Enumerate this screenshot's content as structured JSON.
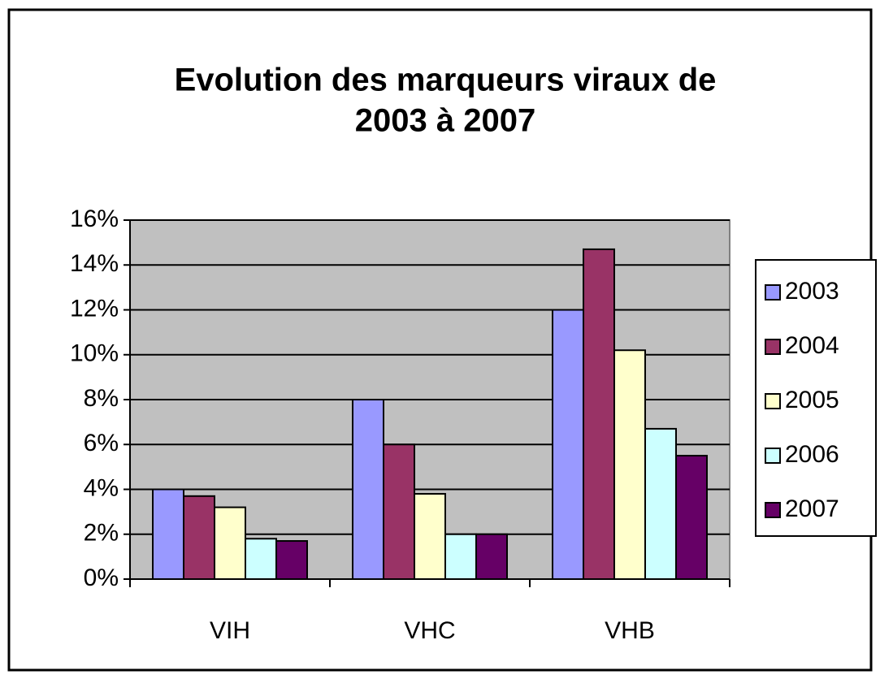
{
  "chart_data": {
    "type": "bar",
    "title": [
      "Evolution des marqueurs viraux de",
      "2003 à 2007"
    ],
    "categories": [
      "VIH",
      "VHC",
      "VHB"
    ],
    "series": [
      {
        "name": "2003",
        "color": "#9999ff",
        "values": [
          4,
          8,
          12
        ]
      },
      {
        "name": "2004",
        "color": "#993366",
        "values": [
          3.7,
          6,
          14.7
        ]
      },
      {
        "name": "2005",
        "color": "#ffffcc",
        "values": [
          3.2,
          3.8,
          10.2
        ]
      },
      {
        "name": "2006",
        "color": "#ccffff",
        "values": [
          1.8,
          2,
          6.7
        ]
      },
      {
        "name": "2007",
        "color": "#660066",
        "values": [
          1.7,
          2,
          5.5
        ]
      }
    ],
    "ylim": [
      0,
      16
    ],
    "yticks": [
      {
        "value": 0,
        "label": "0%"
      },
      {
        "value": 2,
        "label": "2%"
      },
      {
        "value": 4,
        "label": "4%"
      },
      {
        "value": 6,
        "label": "6%"
      },
      {
        "value": 8,
        "label": "8%"
      },
      {
        "value": 10,
        "label": "10%"
      },
      {
        "value": 12,
        "label": "12%"
      },
      {
        "value": 14,
        "label": "14%"
      },
      {
        "value": 16,
        "label": "16%"
      }
    ],
    "grid": true,
    "legend": "right",
    "plot_background": "#c0c0c0"
  }
}
